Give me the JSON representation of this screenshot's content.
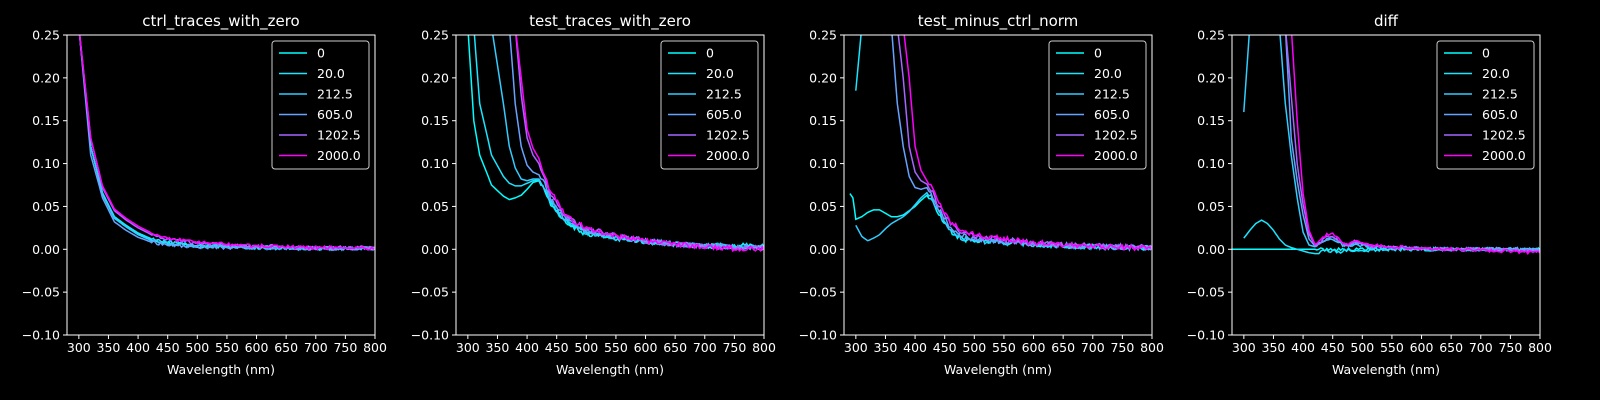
{
  "figure": {
    "background": "#000000",
    "foreground": "#ffffff"
  },
  "legend_labels": [
    "0",
    "20.0",
    "212.5",
    "605.0",
    "1202.5",
    "2000.0"
  ],
  "series_colors": [
    "#00ffff",
    "#1ae5ff",
    "#33ccff",
    "#66a3ff",
    "#a666ff",
    "#ff00ff"
  ],
  "chart_data": [
    {
      "type": "line",
      "title": "ctrl_traces_with_zero",
      "xlabel": "Wavelength (nm)",
      "ylabel": "",
      "xlim": [
        280,
        800
      ],
      "ylim": [
        -0.1,
        0.25
      ],
      "xticks": [
        300,
        350,
        400,
        450,
        500,
        550,
        600,
        650,
        700,
        750,
        800
      ],
      "yticks": [
        -0.1,
        -0.05,
        0.0,
        0.05,
        0.1,
        0.15,
        0.2,
        0.25
      ],
      "xtick_labels": [
        "300",
        "350",
        "400",
        "450",
        "500",
        "550",
        "600",
        "650",
        "700",
        "750",
        "800"
      ],
      "ytick_labels": [
        "−0.10",
        "−0.05",
        "0.00",
        "0.05",
        "0.10",
        "0.15",
        "0.20",
        "0.25"
      ],
      "legend": "top-right",
      "grid": false,
      "noise": 0.002,
      "x": [
        300,
        320,
        340,
        360,
        380,
        400,
        420,
        450,
        500,
        550,
        600,
        650,
        700,
        750,
        800
      ],
      "series": [
        {
          "name": "0",
          "values": [
            0.26,
            0.12,
            0.065,
            0.038,
            0.027,
            0.018,
            0.012,
            0.007,
            0.004,
            0.003,
            0.002,
            0.002,
            0.001,
            0.001,
            0.001
          ]
        },
        {
          "name": "20.0",
          "values": [
            0.26,
            0.12,
            0.066,
            0.038,
            0.028,
            0.019,
            0.013,
            0.008,
            0.005,
            0.004,
            0.003,
            0.002,
            0.001,
            0.001,
            0.001
          ]
        },
        {
          "name": "212.5",
          "values": [
            0.26,
            0.12,
            0.064,
            0.036,
            0.026,
            0.017,
            0.011,
            0.006,
            0.004,
            0.003,
            0.002,
            0.001,
            0.001,
            0.001,
            0.001
          ]
        },
        {
          "name": "605.0",
          "values": [
            0.26,
            0.11,
            0.06,
            0.032,
            0.022,
            0.014,
            0.009,
            0.005,
            0.003,
            0.002,
            0.002,
            0.001,
            0.001,
            0.001,
            0.001
          ]
        },
        {
          "name": "1202.5",
          "values": [
            0.26,
            0.13,
            0.072,
            0.045,
            0.034,
            0.025,
            0.018,
            0.012,
            0.007,
            0.005,
            0.004,
            0.003,
            0.002,
            0.002,
            0.002
          ]
        },
        {
          "name": "2000.0",
          "values": [
            0.26,
            0.13,
            0.074,
            0.047,
            0.036,
            0.027,
            0.02,
            0.013,
            0.008,
            0.006,
            0.004,
            0.003,
            0.002,
            0.002,
            0.001
          ]
        }
      ]
    },
    {
      "type": "line",
      "title": "test_traces_with_zero",
      "xlabel": "Wavelength (nm)",
      "ylabel": "",
      "xlim": [
        280,
        800
      ],
      "ylim": [
        -0.1,
        0.25
      ],
      "xticks": [
        300,
        350,
        400,
        450,
        500,
        550,
        600,
        650,
        700,
        750,
        800
      ],
      "yticks": [
        -0.1,
        -0.05,
        0.0,
        0.05,
        0.1,
        0.15,
        0.2,
        0.25
      ],
      "xtick_labels": [
        "300",
        "350",
        "400",
        "450",
        "500",
        "550",
        "600",
        "650",
        "700",
        "750",
        "800"
      ],
      "ytick_labels": [
        "−0.10",
        "−0.05",
        "0.00",
        "0.05",
        "0.10",
        "0.15",
        "0.20",
        "0.25"
      ],
      "legend": "top-right",
      "grid": false,
      "noise": 0.003,
      "x": [
        300,
        310,
        320,
        340,
        360,
        370,
        380,
        390,
        400,
        410,
        420,
        430,
        440,
        460,
        480,
        500,
        550,
        600,
        650,
        700,
        750,
        800
      ],
      "series": [
        {
          "name": "0",
          "values": [
            0.26,
            0.15,
            0.11,
            0.075,
            0.062,
            0.058,
            0.06,
            0.063,
            0.07,
            0.078,
            0.08,
            0.068,
            0.052,
            0.035,
            0.025,
            0.018,
            0.013,
            0.009,
            0.006,
            0.004,
            0.004,
            0.004
          ]
        },
        {
          "name": "20.0",
          "values": [
            0.26,
            0.26,
            0.17,
            0.11,
            0.085,
            0.077,
            0.074,
            0.074,
            0.077,
            0.08,
            0.081,
            0.07,
            0.054,
            0.036,
            0.026,
            0.019,
            0.014,
            0.009,
            0.006,
            0.004,
            0.003,
            0.003
          ]
        },
        {
          "name": "212.5",
          "values": [
            0.26,
            0.26,
            0.26,
            0.26,
            0.17,
            0.12,
            0.095,
            0.082,
            0.08,
            0.082,
            0.082,
            0.072,
            0.056,
            0.038,
            0.027,
            0.02,
            0.014,
            0.01,
            0.006,
            0.004,
            0.003,
            0.002
          ]
        },
        {
          "name": "605.0",
          "values": [
            0.26,
            0.26,
            0.26,
            0.26,
            0.26,
            0.26,
            0.17,
            0.12,
            0.098,
            0.09,
            0.087,
            0.076,
            0.06,
            0.041,
            0.029,
            0.022,
            0.015,
            0.01,
            0.006,
            0.004,
            0.003,
            0.002
          ]
        },
        {
          "name": "1202.5",
          "values": [
            0.26,
            0.26,
            0.26,
            0.26,
            0.26,
            0.26,
            0.26,
            0.18,
            0.13,
            0.11,
            0.1,
            0.082,
            0.064,
            0.043,
            0.031,
            0.024,
            0.016,
            0.01,
            0.006,
            0.004,
            0.002,
            0.001
          ]
        },
        {
          "name": "2000.0",
          "values": [
            0.26,
            0.26,
            0.26,
            0.26,
            0.26,
            0.26,
            0.26,
            0.2,
            0.14,
            0.118,
            0.106,
            0.086,
            0.067,
            0.045,
            0.032,
            0.025,
            0.016,
            0.01,
            0.006,
            0.003,
            0.001,
            0.0
          ]
        }
      ]
    },
    {
      "type": "line",
      "title": "test_minus_ctrl_norm",
      "xlabel": "Wavelength (nm)",
      "ylabel": "",
      "xlim": [
        280,
        800
      ],
      "ylim": [
        -0.1,
        0.25
      ],
      "xticks": [
        300,
        350,
        400,
        450,
        500,
        550,
        600,
        650,
        700,
        750,
        800
      ],
      "yticks": [
        -0.1,
        -0.05,
        0.0,
        0.05,
        0.1,
        0.15,
        0.2,
        0.25
      ],
      "xtick_labels": [
        "300",
        "350",
        "400",
        "450",
        "500",
        "550",
        "600",
        "650",
        "700",
        "750",
        "800"
      ],
      "ytick_labels": [
        "−0.10",
        "−0.05",
        "0.00",
        "0.05",
        "0.10",
        "0.15",
        "0.20",
        "0.25"
      ],
      "legend": "top-right",
      "grid": false,
      "noise": 0.003,
      "x": [
        290,
        295,
        300,
        310,
        320,
        330,
        340,
        350,
        360,
        370,
        380,
        390,
        400,
        410,
        420,
        430,
        440,
        460,
        480,
        500,
        550,
        600,
        650,
        700,
        750,
        800
      ],
      "series": [
        {
          "name": "0",
          "values": [
            0.065,
            0.06,
            0.035,
            0.038,
            0.043,
            0.046,
            0.046,
            0.042,
            0.038,
            0.038,
            0.04,
            0.045,
            0.05,
            0.057,
            0.063,
            0.055,
            0.04,
            0.02,
            0.012,
            0.01,
            0.008,
            0.006,
            0.004,
            0.003,
            0.002,
            0.002
          ]
        },
        {
          "name": "20.0",
          "values": [
            null,
            null,
            0.185,
            0.26,
            0.26,
            0.26,
            0.26,
            0.26,
            0.26,
            0.26,
            0.26,
            0.26,
            0.26,
            0.26,
            0.26,
            0.26,
            0.26,
            0.26,
            0.26,
            0.26,
            0.26,
            0.26,
            0.26,
            0.26,
            0.26,
            0.26
          ]
        },
        {
          "name": "212.5",
          "values": [
            null,
            null,
            0.028,
            0.015,
            0.01,
            0.013,
            0.017,
            0.024,
            0.03,
            0.034,
            0.038,
            0.044,
            0.052,
            0.06,
            0.066,
            0.058,
            0.042,
            0.022,
            0.013,
            0.01,
            0.008,
            0.006,
            0.004,
            0.003,
            0.002,
            0.002
          ]
        },
        {
          "name": "605.0",
          "values": [
            null,
            null,
            null,
            null,
            null,
            0.26,
            0.26,
            0.26,
            0.26,
            0.17,
            0.12,
            0.085,
            0.072,
            0.07,
            0.072,
            0.062,
            0.046,
            0.026,
            0.016,
            0.012,
            0.009,
            0.007,
            0.005,
            0.003,
            0.002,
            0.002
          ]
        },
        {
          "name": "1202.5",
          "values": [
            null,
            null,
            null,
            null,
            null,
            null,
            null,
            null,
            null,
            0.26,
            0.2,
            0.12,
            0.09,
            0.08,
            0.076,
            0.066,
            0.05,
            0.03,
            0.019,
            0.015,
            0.011,
            0.008,
            0.005,
            0.004,
            0.003,
            0.002
          ]
        },
        {
          "name": "2000.0",
          "values": [
            null,
            null,
            null,
            null,
            null,
            null,
            null,
            null,
            null,
            null,
            0.26,
            0.2,
            0.12,
            0.092,
            0.08,
            0.07,
            0.053,
            0.032,
            0.021,
            0.017,
            0.012,
            0.008,
            0.005,
            0.003,
            0.002,
            0.001
          ]
        }
      ]
    },
    {
      "type": "line",
      "title": "diff",
      "xlabel": "Wavelength (nm)",
      "ylabel": "",
      "xlim": [
        280,
        800
      ],
      "ylim": [
        -0.1,
        0.25
      ],
      "xticks": [
        300,
        350,
        400,
        450,
        500,
        550,
        600,
        650,
        700,
        750,
        800
      ],
      "yticks": [
        -0.1,
        -0.05,
        0.0,
        0.05,
        0.1,
        0.15,
        0.2,
        0.25
      ],
      "xtick_labels": [
        "300",
        "350",
        "400",
        "450",
        "500",
        "550",
        "600",
        "650",
        "700",
        "750",
        "800"
      ],
      "ytick_labels": [
        "−0.10",
        "−0.05",
        "0.00",
        "0.05",
        "0.10",
        "0.15",
        "0.20",
        "0.25"
      ],
      "legend": "top-right",
      "grid": false,
      "noise": 0.002,
      "x": [
        280,
        300,
        310,
        320,
        330,
        340,
        350,
        360,
        370,
        380,
        390,
        400,
        410,
        420,
        430,
        440,
        450,
        460,
        470,
        480,
        490,
        500,
        510,
        550,
        600,
        650,
        700,
        750,
        800
      ],
      "series": [
        {
          "name": "0",
          "values": [
            0.0,
            0.0,
            0.0,
            0.0,
            0.0,
            0.0,
            0.0,
            0.0,
            0.0,
            0.0,
            0.0,
            0.0,
            0.0,
            0.0,
            0.0,
            0.0,
            0.0,
            0.0,
            0.0,
            0.0,
            0.0,
            0.0,
            0.0,
            0.0,
            0.0,
            0.0,
            0.0,
            0.0,
            0.0
          ]
        },
        {
          "name": "20.0",
          "values": [
            null,
            0.013,
            0.022,
            0.03,
            0.034,
            0.03,
            0.022,
            0.012,
            0.005,
            0.002,
            0.0,
            -0.002,
            -0.004,
            -0.005,
            -0.003,
            -0.002,
            -0.002,
            -0.003,
            -0.002,
            -0.001,
            -0.002,
            -0.001,
            -0.001,
            0.0,
            0.0,
            0.0,
            0.0,
            0.0,
            0.0
          ]
        },
        {
          "name": "212.5",
          "values": [
            null,
            0.16,
            0.26,
            0.26,
            0.26,
            0.26,
            0.26,
            0.26,
            0.17,
            0.11,
            0.06,
            0.02,
            0.005,
            0.003,
            0.008,
            0.012,
            0.012,
            0.008,
            0.004,
            0.004,
            0.006,
            0.004,
            0.003,
            0.002,
            0.001,
            0.0,
            0.0,
            0.0,
            0.0
          ]
        },
        {
          "name": "605.0",
          "values": [
            null,
            null,
            null,
            null,
            null,
            null,
            0.26,
            0.26,
            0.26,
            0.13,
            0.08,
            0.04,
            0.012,
            0.004,
            0.008,
            0.013,
            0.013,
            0.01,
            0.005,
            0.005,
            0.008,
            0.005,
            0.004,
            0.002,
            0.001,
            0.0,
            0.0,
            0.0,
            0.0
          ]
        },
        {
          "name": "1202.5",
          "values": [
            null,
            null,
            null,
            null,
            null,
            null,
            null,
            null,
            0.26,
            0.18,
            0.1,
            0.052,
            0.018,
            0.005,
            0.009,
            0.015,
            0.015,
            0.011,
            0.006,
            0.006,
            0.01,
            0.006,
            0.004,
            0.002,
            0.001,
            0.0,
            0.0,
            -0.001,
            -0.002
          ]
        },
        {
          "name": "2000.0",
          "values": [
            null,
            null,
            null,
            null,
            null,
            null,
            null,
            null,
            null,
            0.26,
            0.15,
            0.065,
            0.022,
            0.006,
            0.01,
            0.017,
            0.017,
            0.012,
            0.007,
            0.007,
            0.012,
            0.008,
            0.005,
            0.003,
            0.001,
            0.0,
            -0.001,
            -0.002,
            -0.004
          ]
        }
      ]
    }
  ]
}
